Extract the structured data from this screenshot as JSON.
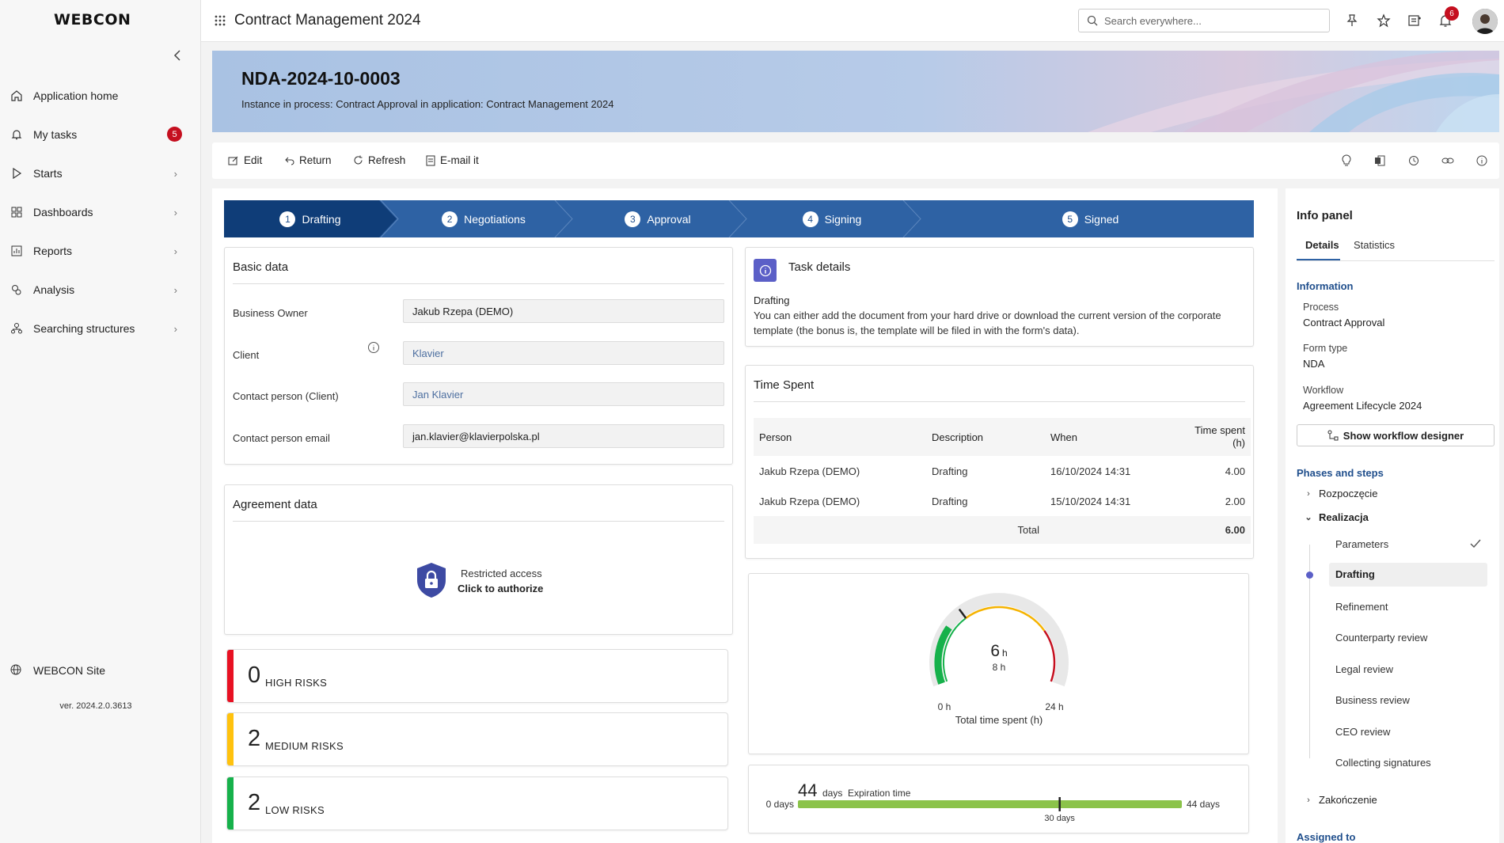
{
  "sidebar": {
    "logo": "WEBCON",
    "items": [
      {
        "label": "Application home",
        "icon": "home-icon"
      },
      {
        "label": "My tasks",
        "icon": "bell-icon",
        "badge": "5"
      },
      {
        "label": "Starts",
        "icon": "play-icon"
      },
      {
        "label": "Dashboards",
        "icon": "dashboard-icon"
      },
      {
        "label": "Reports",
        "icon": "report-icon"
      },
      {
        "label": "Analysis",
        "icon": "analysis-icon"
      },
      {
        "label": "Searching structures",
        "icon": "structure-icon"
      }
    ],
    "site_label": "WEBCON Site",
    "version": "ver. 2024.2.0.3613"
  },
  "topbar": {
    "app_title": "Contract Management 2024",
    "search_placeholder": "Search everywhere...",
    "notifications_count": "6"
  },
  "banner": {
    "title": "NDA-2024-10-0003",
    "subtitle": "Instance in process: Contract Approval in application: Contract Management 2024"
  },
  "actions": {
    "edit": "Edit",
    "return": "Return",
    "refresh": "Refresh",
    "email": "E-mail it"
  },
  "steps": [
    {
      "num": "1",
      "label": "Drafting",
      "active": true
    },
    {
      "num": "2",
      "label": "Negotiations"
    },
    {
      "num": "3",
      "label": "Approval"
    },
    {
      "num": "4",
      "label": "Signing"
    },
    {
      "num": "5",
      "label": "Signed"
    }
  ],
  "basic_data": {
    "title": "Basic data",
    "fields": [
      {
        "label": "Business Owner",
        "value": "Jakub Rzepa (DEMO)"
      },
      {
        "label": "Client",
        "value": "Klavier"
      },
      {
        "label": "Contact person (Client)",
        "value": "Jan Klavier"
      },
      {
        "label": "Contact person email",
        "value": "jan.klavier@klavierpolska.pl"
      }
    ]
  },
  "agreement": {
    "title": "Agreement data",
    "restricted": "Restricted access",
    "authorize": "Click to authorize"
  },
  "risks": [
    {
      "count": "0",
      "label": "HIGH RISKS",
      "color": "#e81123"
    },
    {
      "count": "2",
      "label": "MEDIUM RISKS",
      "color": "#ffc20e"
    },
    {
      "count": "2",
      "label": "LOW RISKS",
      "color": "#16b14b"
    }
  ],
  "task_details": {
    "title": "Task details",
    "step": "Drafting",
    "description": "You can either add the document from your hard drive or download the current version of the corporate template (the bonus is, the template will be filed in with the form's data)."
  },
  "time_spent": {
    "title": "Time Spent",
    "headers": [
      "Person",
      "Description",
      "When",
      "Time spent (h)"
    ],
    "rows": [
      [
        "Jakub Rzepa (DEMO)",
        "Drafting",
        "16/10/2024 14:31",
        "4.00"
      ],
      [
        "Jakub Rzepa (DEMO)",
        "Drafting",
        "15/10/2024 14:31",
        "2.00"
      ]
    ],
    "total_label": "Total",
    "total_value": "6.00"
  },
  "gauge": {
    "value": "6",
    "unit": "h",
    "target": "8 h",
    "min_label": "0 h",
    "max_label": "24 h",
    "caption": "Total time spent (h)",
    "value_num": 6,
    "target_num": 8,
    "max_num": 24
  },
  "expiration": {
    "days": "44",
    "days_unit": "days",
    "label": "Expiration time",
    "min_label": "0 days",
    "max_label": "44 days",
    "marker_label": "30 days",
    "marker_num": 30,
    "max_num": 44
  },
  "info_panel": {
    "title": "Info panel",
    "tabs": [
      "Details",
      "Statistics"
    ],
    "information_heading": "Information",
    "process_label": "Process",
    "process_value": "Contract Approval",
    "form_type_label": "Form type",
    "form_type_value": "NDA",
    "workflow_label": "Workflow",
    "workflow_value": "Agreement Lifecycle 2024",
    "workflow_button": "Show workflow designer",
    "phases_heading": "Phases and steps",
    "phases": [
      "Rozpoczęcie",
      "Realizacja",
      "Zakończenie"
    ],
    "steps": [
      "Parameters",
      "Drafting",
      "Refinement",
      "Counterparty review",
      "Legal review",
      "Business review",
      "CEO review",
      "Collecting signatures"
    ],
    "assigned_heading": "Assigned to"
  },
  "colors": {
    "accent": "#2e62a4",
    "step_active": "#0f3d78",
    "gauge_green": "#16b14b",
    "gauge_yellow": "#f5b301",
    "gauge_red": "#c50f1f",
    "exp_bar": "#8bc34a"
  }
}
